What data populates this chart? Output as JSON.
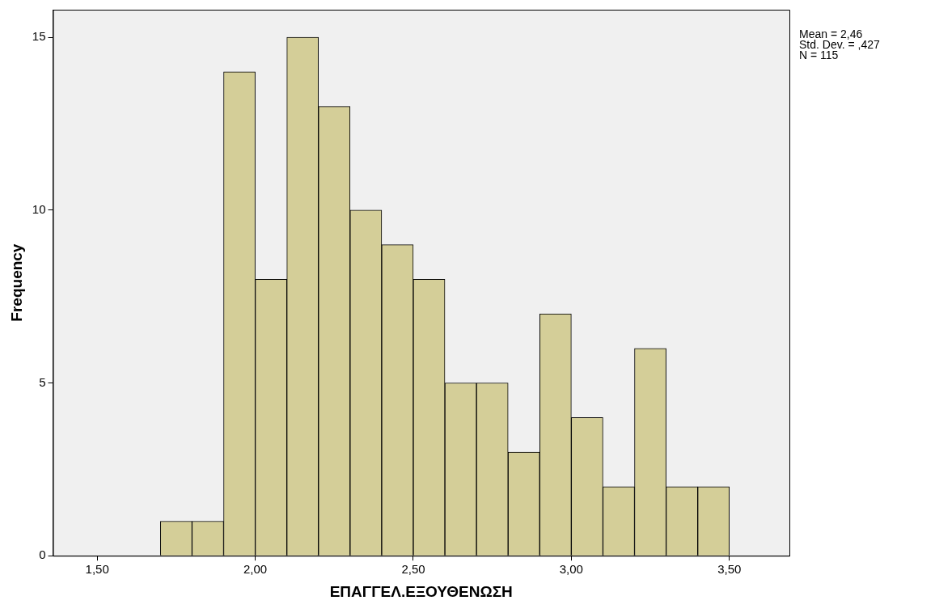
{
  "chart_data": {
    "type": "histogram",
    "xlabel": "ΕΠΑΓΓΕΛ.ΕΞΟΥΘΕΝΩΣΗ",
    "ylabel": "Frequency",
    "bins": [
      1.7,
      1.8,
      1.9,
      2.0,
      2.1,
      2.2,
      2.3,
      2.4,
      2.5,
      2.6,
      2.7,
      2.8,
      2.9,
      3.0,
      3.1,
      3.2,
      3.3,
      3.4,
      3.5
    ],
    "values": [
      1,
      1,
      14,
      8,
      15,
      13,
      10,
      9,
      8,
      5,
      5,
      3,
      7,
      4,
      2,
      6,
      2,
      2
    ],
    "color": "#d4ce98",
    "xlim": [
      1.36,
      3.69
    ],
    "xticks": [
      {
        "value": 1.5,
        "label": "1,50"
      },
      {
        "value": 2.0,
        "label": "2,00"
      },
      {
        "value": 2.5,
        "label": "2,50"
      },
      {
        "value": 3.0,
        "label": "3,00"
      },
      {
        "value": 3.5,
        "label": "3,50"
      }
    ],
    "ylim": [
      0,
      15.8
    ],
    "yticks": [
      0,
      5,
      10,
      15
    ],
    "grid": false,
    "legend": false,
    "annotations": [
      "Mean = 2,46",
      "Std. Dev. = ,427",
      "N = 115"
    ]
  }
}
